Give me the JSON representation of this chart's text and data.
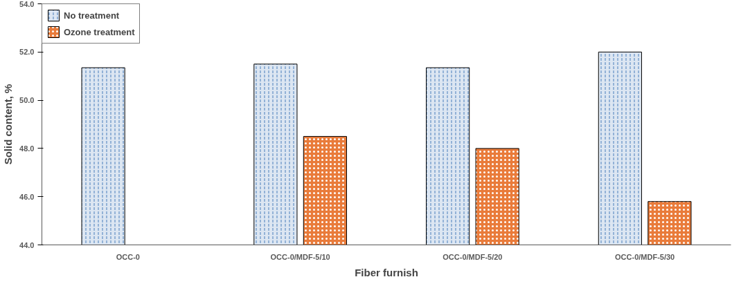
{
  "chart_data": {
    "type": "bar",
    "xlabel": "Fiber furnish",
    "ylabel": "Solid content, %",
    "categories": [
      "OCC-0",
      "OCC-0/MDF-5/10",
      "OCC-0/MDF-5/20",
      "OCC-0/MDF-5/30"
    ],
    "series": [
      {
        "name": "No treatment",
        "color": "#dce6f2",
        "values": [
          51.35,
          51.5,
          51.35,
          52.0
        ]
      },
      {
        "name": "Ozone treatment",
        "color": "#e97b3a",
        "values": [
          null,
          48.5,
          48.0,
          45.8
        ]
      }
    ],
    "ylim": [
      44,
      54
    ],
    "yticks": [
      {
        "value": 44,
        "label": "44.0"
      },
      {
        "value": 46,
        "label": "46.0"
      },
      {
        "value": 48,
        "label": "48.0"
      },
      {
        "value": 50,
        "label": "50.0"
      },
      {
        "value": 52,
        "label": "52.0"
      },
      {
        "value": 54,
        "label": "54.0"
      }
    ],
    "grid": false,
    "legend": "top left"
  }
}
